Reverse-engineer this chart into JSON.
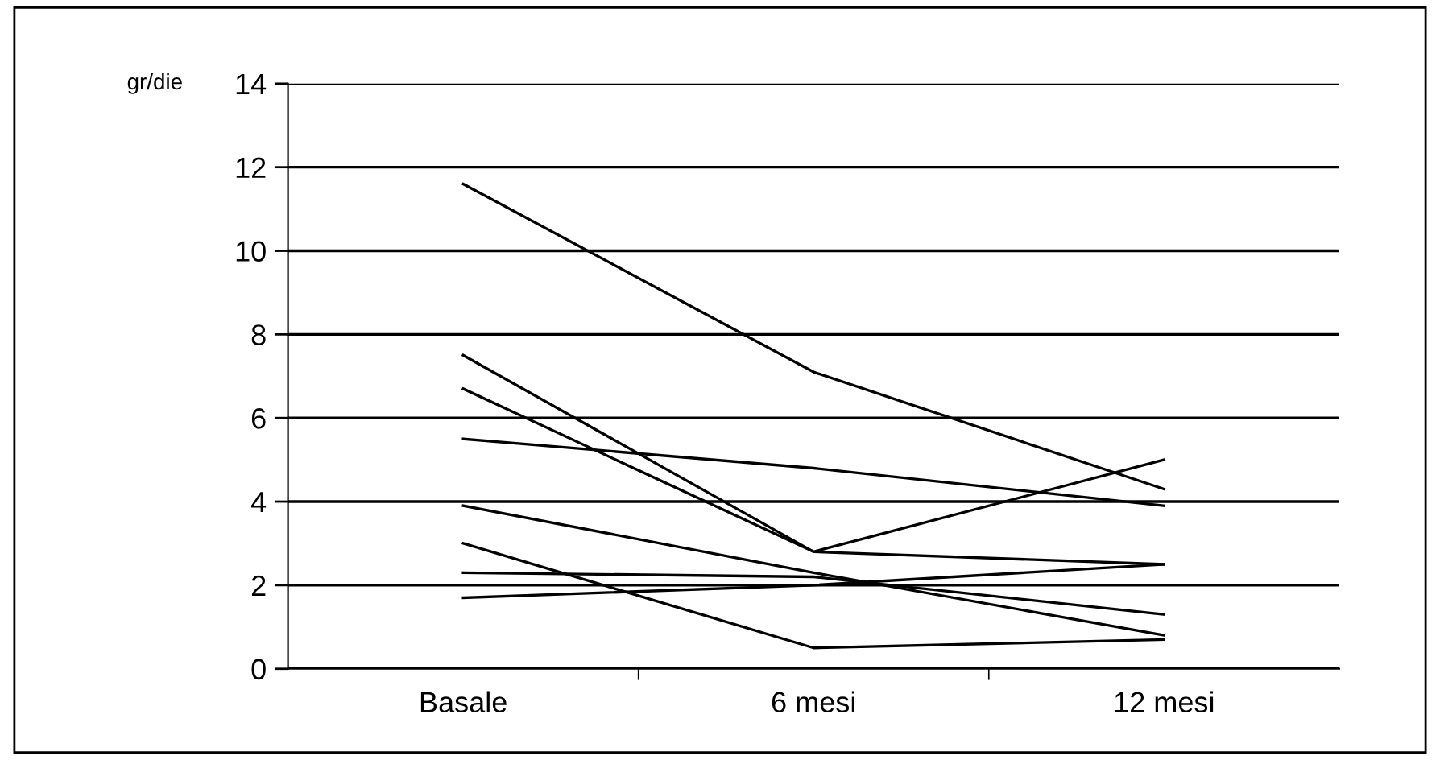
{
  "chart_data": {
    "type": "line",
    "ylabel": "gr/die",
    "categories": [
      "Basale",
      "6 mesi",
      "12 mesi"
    ],
    "series": [
      {
        "color": "#000000",
        "values": [
          11.6,
          7.1,
          4.3
        ]
      },
      {
        "color": "#000000",
        "values": [
          7.5,
          2.8,
          5.0
        ]
      },
      {
        "color": "#000000",
        "values": [
          6.7,
          2.8,
          2.5
        ]
      },
      {
        "color": "#000000",
        "values": [
          5.5,
          4.8,
          3.9
        ]
      },
      {
        "color": "#000000",
        "values": [
          3.9,
          2.3,
          0.8
        ]
      },
      {
        "color": "#000000",
        "values": [
          3.0,
          0.5,
          0.7
        ]
      },
      {
        "color": "#000000",
        "values": [
          2.3,
          2.2,
          1.3
        ]
      },
      {
        "color": "#000000",
        "values": [
          1.7,
          2.0,
          2.5
        ]
      }
    ],
    "ylim": [
      0,
      14
    ],
    "yticks": [
      0,
      2,
      4,
      6,
      8,
      10,
      12,
      14
    ],
    "grid": "y",
    "legend": false,
    "marker": "none",
    "line_style": "solid"
  }
}
